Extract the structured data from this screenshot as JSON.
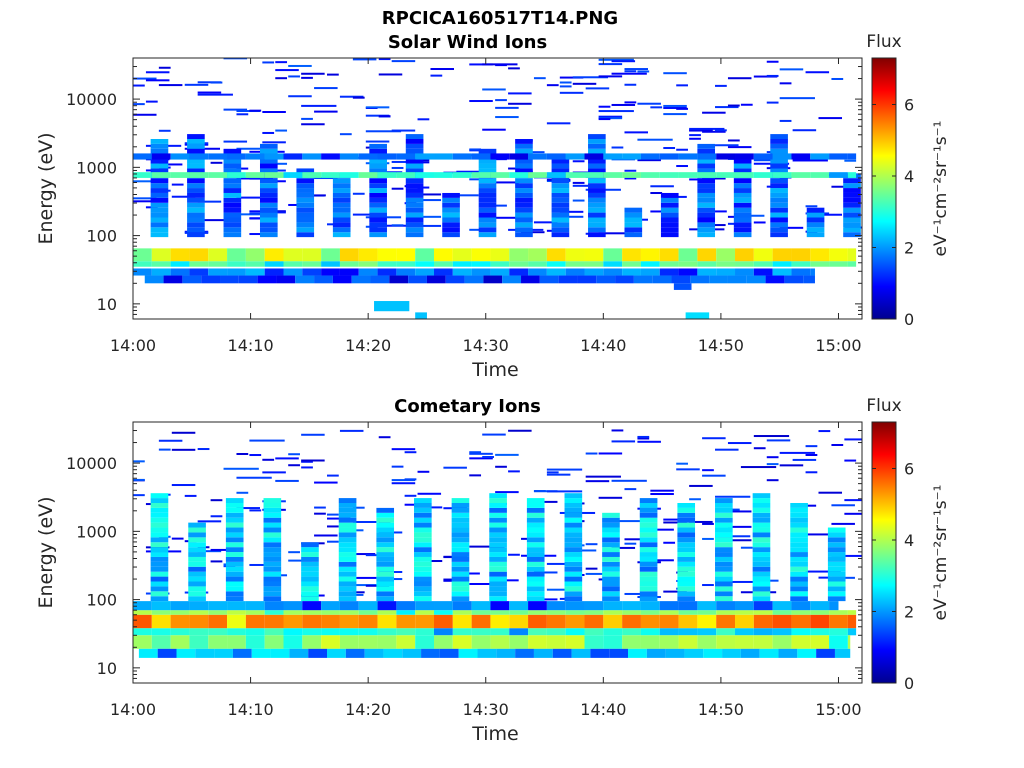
{
  "figure": {
    "title": "RPCICA160517T14.PNG"
  },
  "colors": {
    "colormap": [
      "#00008f",
      "#0000ff",
      "#0080ff",
      "#00ffff",
      "#80ff80",
      "#ffff00",
      "#ff8000",
      "#ff0000",
      "#800000"
    ],
    "axis": "#262626",
    "background": "#ffffff"
  },
  "chart_data": [
    {
      "type": "heatmap",
      "title": "Solar Wind Ions",
      "xlabel": "Time",
      "ylabel": "Energy (eV)",
      "x_ticks": [
        "14:00",
        "14:10",
        "14:20",
        "14:30",
        "14:40",
        "14:50",
        "15:00"
      ],
      "y_ticks": [
        "10",
        "100",
        "1000",
        "10000"
      ],
      "y_scale": "log",
      "ylim": [
        6,
        40000
      ],
      "xlim": [
        "14:00",
        "15:02"
      ],
      "colorbar": {
        "title": "Flux",
        "label": "eV⁻¹cm⁻²sr⁻¹s⁻¹",
        "ticks": [
          "0",
          "2",
          "4",
          "6"
        ],
        "range": [
          0,
          7.3
        ]
      },
      "bands": [
        {
          "emin": 42,
          "emax": 65,
          "flux": 4.6,
          "t0": 0,
          "t1": 61.5
        },
        {
          "emin": 35,
          "emax": 42,
          "flux": 3.4,
          "t0": 0,
          "t1": 61.5
        },
        {
          "emin": 700,
          "emax": 850,
          "flux": 3.2,
          "t0": 0,
          "t1": 61.5
        },
        {
          "emin": 1300,
          "emax": 1600,
          "flux": 1.8,
          "t0": 0,
          "t1": 61.5
        },
        {
          "emin": 26,
          "emax": 33,
          "flux": 2.0,
          "t0": 0,
          "t1": 58
        },
        {
          "emin": 20,
          "emax": 26,
          "flux": 1.6,
          "t0": 1,
          "t1": 58
        }
      ],
      "patches": [
        {
          "emin": 7.8,
          "emax": 11,
          "flux": 2.3,
          "t0": 20.5,
          "t1": 23.5
        },
        {
          "emin": 6,
          "emax": 7.5,
          "flux": 2.3,
          "t0": 24,
          "t1": 25
        },
        {
          "emin": 6,
          "emax": 7.5,
          "flux": 2.5,
          "t0": 47,
          "t1": 49
        },
        {
          "emin": 16,
          "emax": 20,
          "flux": 1.5,
          "t0": 46,
          "t1": 47.5
        }
      ],
      "noise": {
        "emin": 100,
        "emax": 40000,
        "density": 0.55,
        "flux_min": 0.6,
        "flux_max": 1.6
      },
      "columns_period": 3.1
    },
    {
      "type": "heatmap",
      "title": "Cometary Ions",
      "xlabel": "Time",
      "ylabel": "Energy (eV)",
      "x_ticks": [
        "14:00",
        "14:10",
        "14:20",
        "14:30",
        "14:40",
        "14:50",
        "15:00"
      ],
      "y_ticks": [
        "10",
        "100",
        "1000",
        "10000"
      ],
      "y_scale": "log",
      "ylim": [
        6,
        40000
      ],
      "xlim": [
        "14:00",
        "15:02"
      ],
      "colorbar": {
        "title": "Flux",
        "label": "eV⁻¹cm⁻²sr⁻¹s⁻¹",
        "ticks": [
          "0",
          "2",
          "4",
          "6"
        ],
        "range": [
          0,
          7.3
        ]
      },
      "bands": [
        {
          "emin": 38,
          "emax": 60,
          "flux": 5.6,
          "t0": 0,
          "t1": 61.5
        },
        {
          "emin": 60,
          "emax": 70,
          "flux": 3.8,
          "t0": 0,
          "t1": 61.5
        },
        {
          "emin": 30,
          "emax": 38,
          "flux": 3.0,
          "t0": 0,
          "t1": 61.5
        },
        {
          "emin": 19,
          "emax": 30,
          "flux": 4.0,
          "t0": 0,
          "t1": 61
        },
        {
          "emin": 14,
          "emax": 19,
          "flux": 2.4,
          "t0": 0.5,
          "t1": 61
        },
        {
          "emin": 70,
          "emax": 95,
          "flux": 2.0,
          "t0": 0,
          "t1": 60
        }
      ],
      "patches": [],
      "noise": {
        "emin": 100,
        "emax": 30000,
        "density": 0.35,
        "flux_min": 0.5,
        "flux_max": 1.6
      },
      "columns_period": 3.2
    }
  ]
}
